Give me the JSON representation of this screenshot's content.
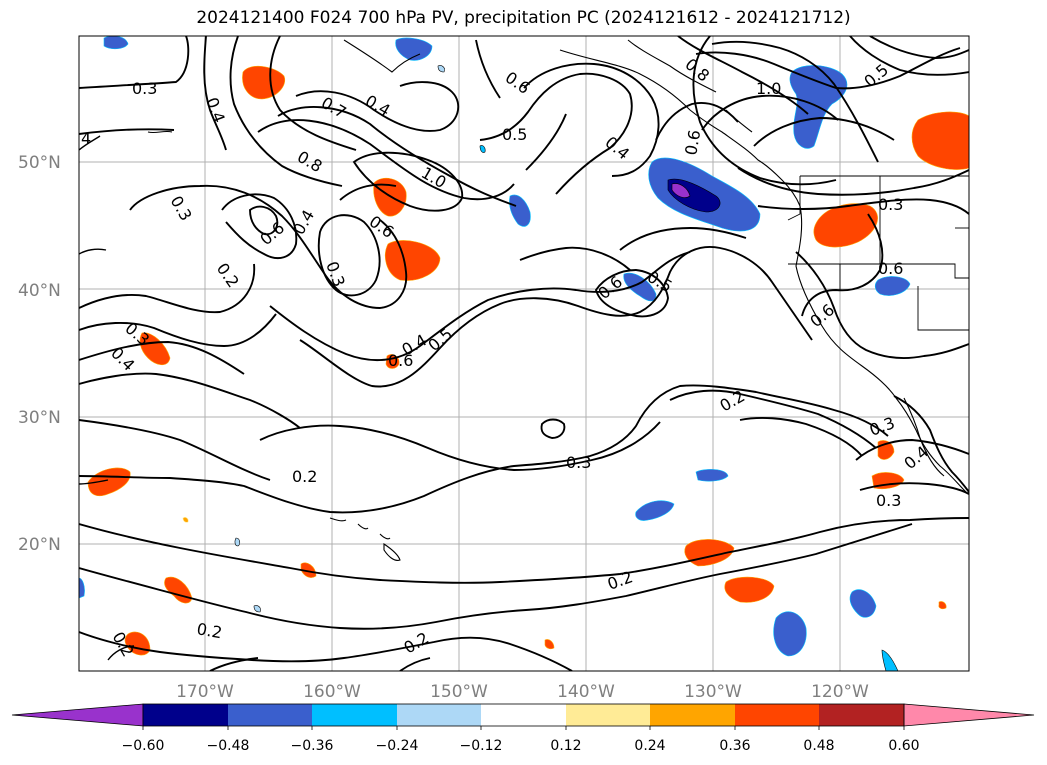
{
  "title": "2024121400 F024 700 hPa PV, precipitation PC (2024121612 - 2024121712)",
  "lat_labels": [
    "50°N",
    "40°N",
    "30°N",
    "20°N"
  ],
  "lon_labels": [
    "170°W",
    "160°W",
    "150°W",
    "140°W",
    "130°W",
    "120°W"
  ],
  "contour_labels": [
    "0.3",
    "0.4",
    "0.7",
    "0.4",
    "0.6",
    "0.5",
    "0.8",
    "0.6",
    "0.4",
    "1.0",
    "0.4",
    "1.0",
    "0.8",
    "0.5",
    "4",
    "0.3",
    "0.6",
    "0.4",
    "0.3",
    "0.2",
    "0.3",
    "0.4",
    "0.5",
    "0.6",
    "0.6",
    "0.5",
    "0.6",
    "0.3",
    "0.6",
    "0.6",
    "0.2",
    "0.3",
    "0.3",
    "0.4",
    "0.3",
    "0.2",
    "0.2",
    "0.2",
    "0.2",
    "0.2"
  ],
  "colorbar": {
    "tick_labels": [
      "−0.60",
      "−0.48",
      "−0.36",
      "−0.24",
      "−0.12",
      "0.12",
      "0.24",
      "0.36",
      "0.48",
      "0.60"
    ],
    "colors": [
      "#8a2be2",
      "#9932cc",
      "#00008b",
      "#3a5fcd",
      "#00bfff",
      "#add8f6",
      "#ffffff",
      "#ffeb96",
      "#ffa500",
      "#ff4500",
      "#b22222",
      "#ff88aa"
    ]
  }
}
